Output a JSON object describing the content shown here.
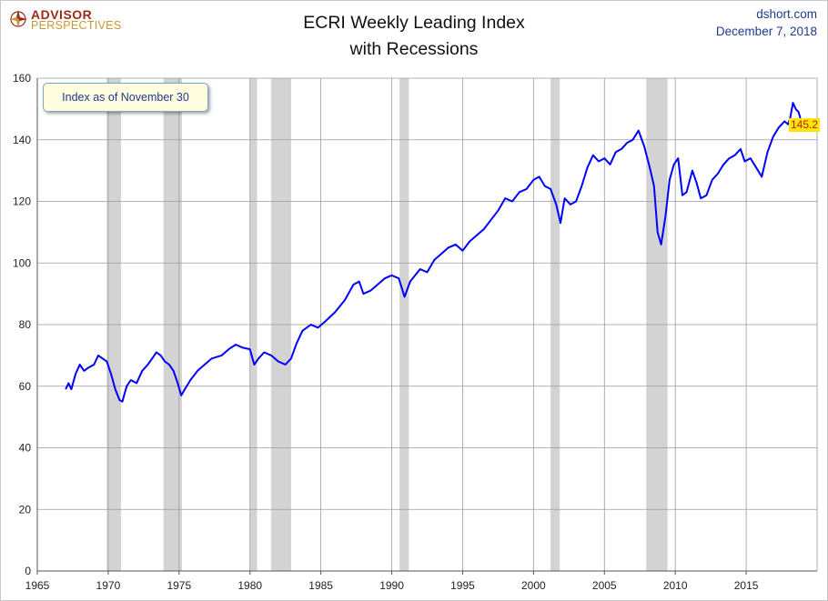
{
  "header": {
    "logo_top": "ADVISOR",
    "logo_bottom": "PERSPECTIVES",
    "title_line1": "ECRI Weekly Leading Index",
    "title_line2": "with Recessions",
    "site": "dshort.com",
    "date": "December 7, 2018"
  },
  "annotation": {
    "note": "Index as of November 30",
    "last_value_label": "145.2"
  },
  "colors": {
    "line": "#0000ff",
    "recession": "#d3d3d3",
    "grid": "#9a9a9a",
    "label_bg": "#ffe600",
    "label_text": "#c0181c"
  },
  "chart_data": {
    "type": "line",
    "title": "ECRI Weekly Leading Index with Recessions",
    "xlabel": "",
    "ylabel": "",
    "xlim": [
      1965,
      2020
    ],
    "ylim": [
      0,
      160
    ],
    "x_ticks": [
      1965,
      1970,
      1975,
      1980,
      1985,
      1990,
      1995,
      2000,
      2005,
      2010,
      2015
    ],
    "y_ticks": [
      0,
      20,
      40,
      60,
      80,
      100,
      120,
      140,
      160
    ],
    "grid": true,
    "legend": "none",
    "recessions": [
      [
        1969.9,
        1970.9
      ],
      [
        1973.9,
        1975.2
      ],
      [
        1980.0,
        1980.5
      ],
      [
        1981.5,
        1982.9
      ],
      [
        1990.55,
        1991.2
      ],
      [
        2001.2,
        2001.85
      ],
      [
        2007.95,
        2009.45
      ]
    ],
    "series": [
      {
        "values": [
          [
            1967.0,
            59
          ],
          [
            1967.2,
            61
          ],
          [
            1967.4,
            59
          ],
          [
            1967.7,
            64
          ],
          [
            1968.0,
            67
          ],
          [
            1968.3,
            65
          ],
          [
            1968.6,
            66
          ],
          [
            1969.0,
            67
          ],
          [
            1969.3,
            70
          ],
          [
            1969.6,
            69
          ],
          [
            1969.9,
            68
          ],
          [
            1970.2,
            64
          ],
          [
            1970.5,
            59
          ],
          [
            1970.8,
            55.5
          ],
          [
            1971.0,
            55
          ],
          [
            1971.3,
            60
          ],
          [
            1971.6,
            62
          ],
          [
            1972.0,
            61
          ],
          [
            1972.4,
            65
          ],
          [
            1972.8,
            67
          ],
          [
            1973.1,
            69
          ],
          [
            1973.4,
            71
          ],
          [
            1973.7,
            70
          ],
          [
            1974.0,
            68
          ],
          [
            1974.3,
            67
          ],
          [
            1974.6,
            65
          ],
          [
            1974.9,
            61
          ],
          [
            1975.15,
            57
          ],
          [
            1975.4,
            59
          ],
          [
            1975.8,
            62
          ],
          [
            1976.3,
            65
          ],
          [
            1976.8,
            67
          ],
          [
            1977.3,
            69
          ],
          [
            1978.0,
            70
          ],
          [
            1978.5,
            72
          ],
          [
            1979.0,
            73.5
          ],
          [
            1979.5,
            72.5
          ],
          [
            1980.0,
            72
          ],
          [
            1980.3,
            67
          ],
          [
            1980.6,
            69
          ],
          [
            1981.0,
            71
          ],
          [
            1981.5,
            70
          ],
          [
            1982.0,
            68
          ],
          [
            1982.5,
            67
          ],
          [
            1982.9,
            69
          ],
          [
            1983.3,
            74
          ],
          [
            1983.7,
            78
          ],
          [
            1984.3,
            80
          ],
          [
            1984.8,
            79
          ],
          [
            1985.3,
            81
          ],
          [
            1986.0,
            84
          ],
          [
            1986.7,
            88
          ],
          [
            1987.3,
            93
          ],
          [
            1987.7,
            94
          ],
          [
            1988.0,
            90
          ],
          [
            1988.5,
            91
          ],
          [
            1989.0,
            93
          ],
          [
            1989.5,
            95
          ],
          [
            1990.0,
            96
          ],
          [
            1990.5,
            95
          ],
          [
            1990.9,
            89
          ],
          [
            1991.3,
            94
          ],
          [
            1992.0,
            98
          ],
          [
            1992.5,
            97
          ],
          [
            1993.0,
            101
          ],
          [
            1993.5,
            103
          ],
          [
            1994.0,
            105
          ],
          [
            1994.5,
            106
          ],
          [
            1995.0,
            104
          ],
          [
            1995.5,
            107
          ],
          [
            1996.0,
            109
          ],
          [
            1996.5,
            111
          ],
          [
            1997.0,
            114
          ],
          [
            1997.5,
            117
          ],
          [
            1998.0,
            121
          ],
          [
            1998.5,
            120
          ],
          [
            1999.0,
            123
          ],
          [
            1999.5,
            124
          ],
          [
            2000.0,
            127
          ],
          [
            2000.4,
            128
          ],
          [
            2000.8,
            125
          ],
          [
            2001.2,
            124
          ],
          [
            2001.6,
            119
          ],
          [
            2001.9,
            113
          ],
          [
            2002.2,
            121
          ],
          [
            2002.6,
            119
          ],
          [
            2003.0,
            120
          ],
          [
            2003.4,
            125
          ],
          [
            2003.8,
            131
          ],
          [
            2004.2,
            135
          ],
          [
            2004.6,
            133
          ],
          [
            2005.0,
            134
          ],
          [
            2005.4,
            132
          ],
          [
            2005.8,
            136
          ],
          [
            2006.2,
            137
          ],
          [
            2006.6,
            139
          ],
          [
            2007.0,
            140
          ],
          [
            2007.4,
            143
          ],
          [
            2007.8,
            138
          ],
          [
            2008.2,
            131
          ],
          [
            2008.5,
            125
          ],
          [
            2008.75,
            110
          ],
          [
            2009.0,
            106
          ],
          [
            2009.3,
            115
          ],
          [
            2009.6,
            127
          ],
          [
            2009.9,
            132
          ],
          [
            2010.2,
            134
          ],
          [
            2010.5,
            122
          ],
          [
            2010.8,
            123
          ],
          [
            2011.2,
            130
          ],
          [
            2011.5,
            126
          ],
          [
            2011.8,
            121
          ],
          [
            2012.2,
            122
          ],
          [
            2012.6,
            127
          ],
          [
            2013.0,
            129
          ],
          [
            2013.4,
            132
          ],
          [
            2013.8,
            134
          ],
          [
            2014.2,
            135
          ],
          [
            2014.6,
            137
          ],
          [
            2014.9,
            133
          ],
          [
            2015.3,
            134
          ],
          [
            2015.7,
            131
          ],
          [
            2016.1,
            128
          ],
          [
            2016.5,
            136
          ],
          [
            2016.9,
            141
          ],
          [
            2017.3,
            144
          ],
          [
            2017.7,
            146
          ],
          [
            2017.95,
            145
          ],
          [
            2018.1,
            147
          ],
          [
            2018.3,
            152
          ],
          [
            2018.5,
            150
          ],
          [
            2018.7,
            149
          ],
          [
            2018.92,
            145.2
          ]
        ]
      }
    ]
  }
}
